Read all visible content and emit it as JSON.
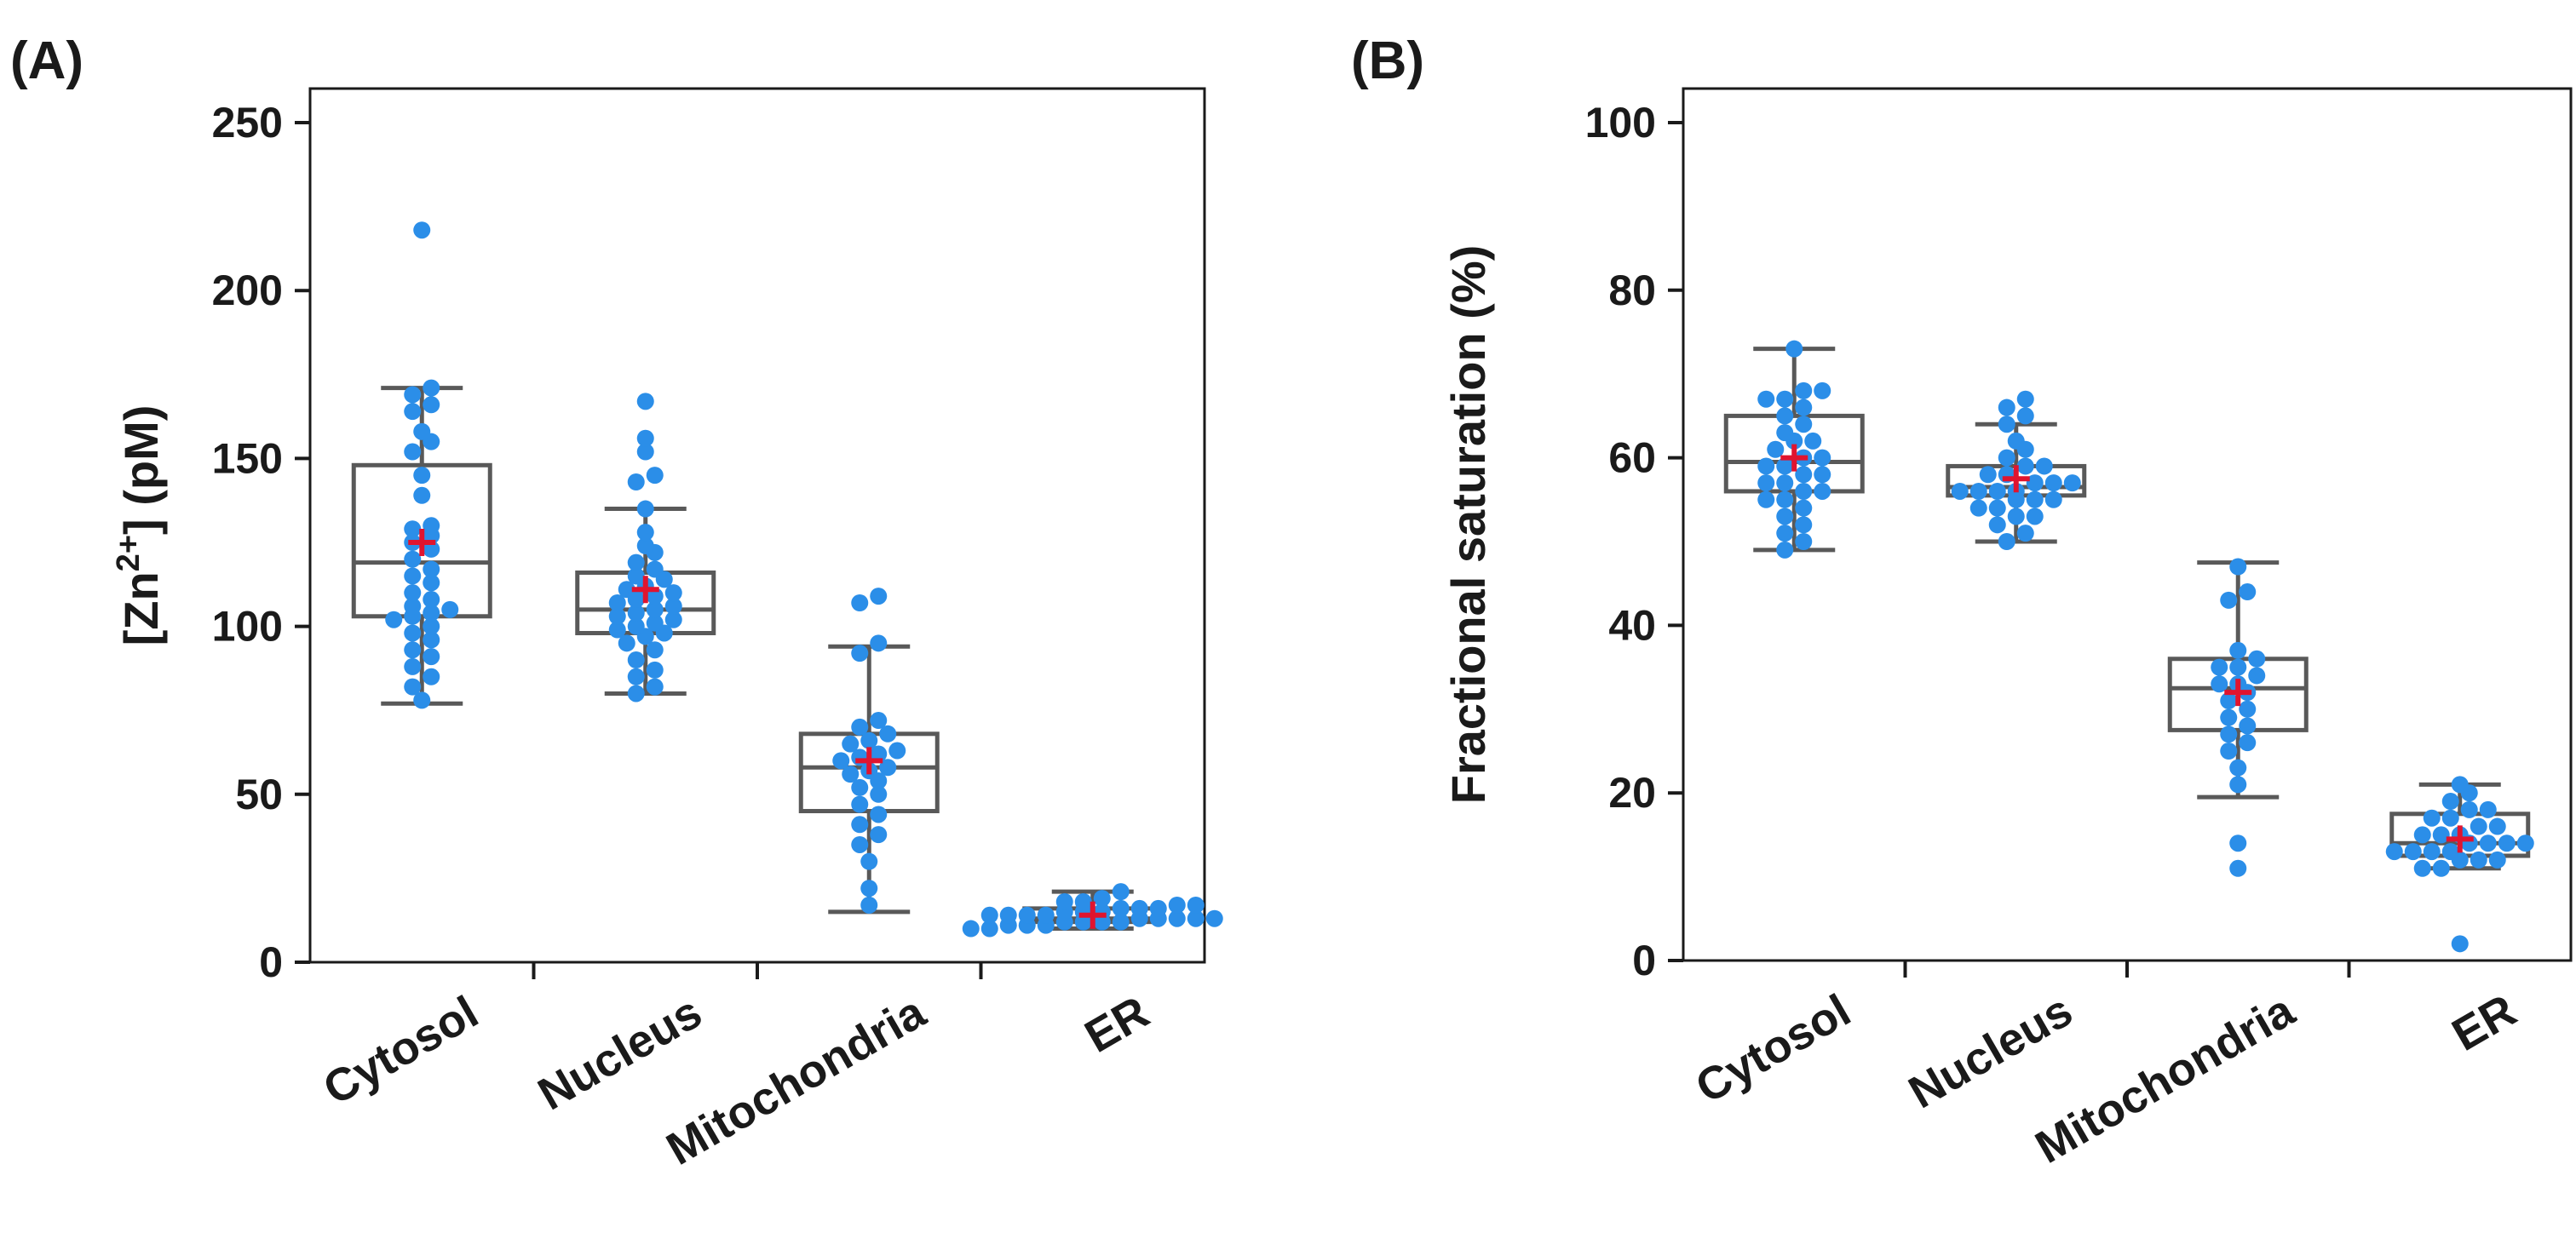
{
  "chart_data": [
    {
      "panel": "(A)",
      "type": "box",
      "ylabel": "[Zn2+] (pM)",
      "ylim": [
        0,
        250
      ],
      "yticks": [
        0,
        50,
        100,
        150,
        200,
        250
      ],
      "categories": [
        "Cytosol",
        "Nucleus",
        "Mitochondria",
        "ER"
      ],
      "boxes": [
        {
          "category": "Cytosol",
          "whisker_low": 77,
          "q1": 103,
          "median": 119,
          "q3": 148,
          "whisker_high": 171,
          "mean": 125,
          "points": [
            218,
            171,
            169,
            166,
            164,
            158,
            155,
            152,
            145,
            139,
            130,
            129,
            127,
            125,
            123,
            120,
            117,
            115,
            113,
            110,
            108,
            106,
            105,
            104,
            103,
            102,
            100,
            98,
            96,
            93,
            91,
            88,
            85,
            82,
            78
          ]
        },
        {
          "category": "Nucleus",
          "whisker_low": 80,
          "q1": 98,
          "median": 105,
          "q3": 116,
          "whisker_high": 135,
          "mean": 111,
          "points": [
            167,
            156,
            152,
            145,
            143,
            135,
            128,
            124,
            122,
            119,
            117,
            115,
            114,
            112,
            111,
            110,
            109,
            108,
            107,
            106,
            105,
            104,
            103,
            102,
            101,
            100,
            99,
            98,
            97,
            95,
            93,
            90,
            87,
            85,
            82,
            80
          ]
        },
        {
          "category": "Mitochondria",
          "whisker_low": 15,
          "q1": 45,
          "median": 58,
          "q3": 68,
          "whisker_high": 94,
          "mean": 60,
          "points": [
            109,
            107,
            95,
            92,
            72,
            70,
            68,
            66,
            65,
            63,
            62,
            61,
            60,
            58,
            57,
            56,
            54,
            52,
            50,
            47,
            44,
            41,
            38,
            35,
            30,
            22,
            17
          ]
        },
        {
          "category": "ER",
          "whisker_low": 10,
          "q1": 12,
          "median": 13,
          "q3": 16,
          "whisker_high": 21,
          "mean": 14,
          "points": [
            21,
            19,
            18,
            18,
            17,
            17,
            16,
            16,
            16,
            15,
            15,
            15,
            14,
            14,
            14,
            14,
            13,
            13,
            13,
            13,
            13,
            12,
            12,
            12,
            12,
            11,
            11,
            11,
            10,
            10
          ]
        }
      ]
    },
    {
      "panel": "(B)",
      "type": "box",
      "ylabel": "Fractional saturation (%)",
      "ylim": [
        0,
        100
      ],
      "yticks": [
        0,
        20,
        40,
        60,
        80,
        100
      ],
      "categories": [
        "Cytosol",
        "Nucleus",
        "Mitochondria",
        "ER"
      ],
      "boxes": [
        {
          "category": "Cytosol",
          "whisker_low": 49,
          "q1": 56,
          "median": 59.5,
          "q3": 65,
          "whisker_high": 73,
          "mean": 60,
          "points": [
            73,
            68,
            68,
            67,
            67,
            66,
            65,
            64,
            63,
            62,
            62,
            61,
            60,
            60,
            59,
            59,
            58,
            58,
            57,
            57,
            56,
            56,
            55,
            55,
            54,
            53,
            52,
            51,
            50,
            49
          ]
        },
        {
          "category": "Nucleus",
          "whisker_low": 50,
          "q1": 55.5,
          "median": 56.5,
          "q3": 59,
          "whisker_high": 64,
          "mean": 57.5,
          "points": [
            67,
            66,
            65,
            64,
            62,
            61,
            60,
            59,
            59,
            58,
            58,
            57,
            57,
            57,
            56,
            56,
            56,
            56,
            55,
            55,
            55,
            54,
            54,
            53,
            53,
            52,
            51,
            50
          ]
        },
        {
          "category": "Mitochondria",
          "whisker_low": 19.5,
          "q1": 27.5,
          "median": 32.5,
          "q3": 36,
          "whisker_high": 47.5,
          "mean": 32,
          "points": [
            47,
            44,
            43,
            37,
            36,
            35,
            35,
            34,
            33,
            33,
            32,
            31,
            30,
            29,
            28,
            27,
            26,
            25,
            23,
            21,
            14,
            11
          ]
        },
        {
          "category": "ER",
          "whisker_low": 11,
          "q1": 12.5,
          "median": 14,
          "q3": 17.5,
          "whisker_high": 21,
          "mean": 14.5,
          "points": [
            21,
            20,
            19,
            18,
            18,
            17,
            17,
            16,
            16,
            15,
            15,
            15,
            14,
            14,
            14,
            14,
            13,
            13,
            13,
            13,
            12,
            12,
            12,
            11,
            11,
            2
          ]
        }
      ]
    }
  ]
}
